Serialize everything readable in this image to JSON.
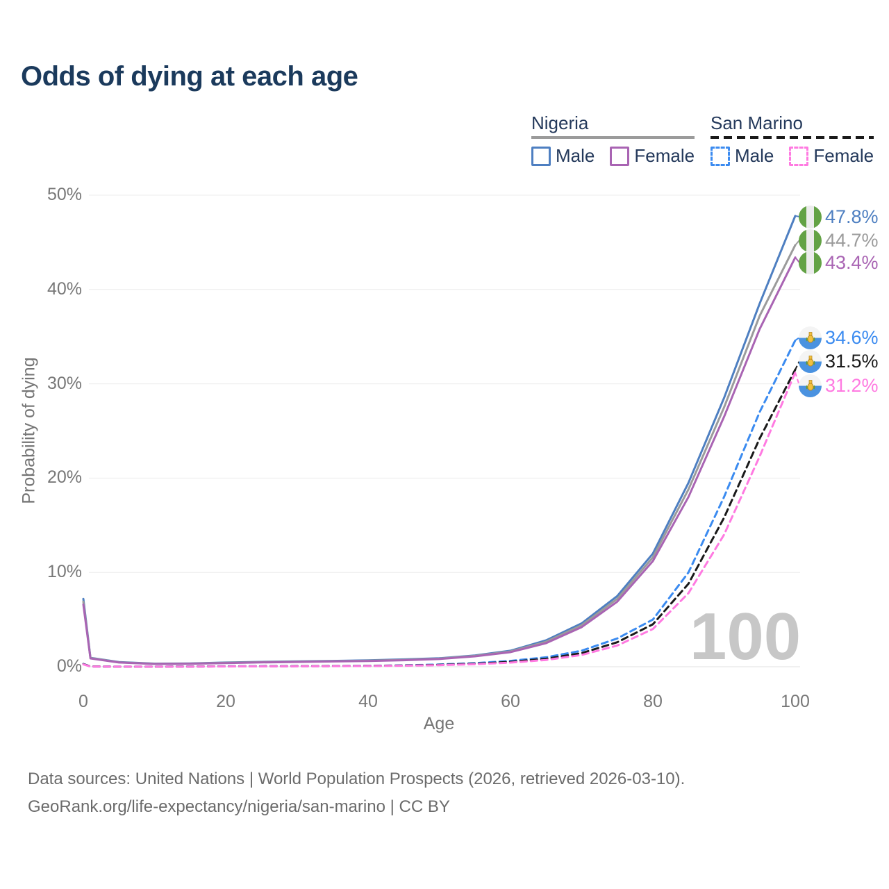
{
  "title": "Odds of dying at each age",
  "legend": {
    "groups": [
      {
        "name": "Nigeria",
        "items": [
          {
            "label": "Male"
          },
          {
            "label": "Female"
          }
        ]
      },
      {
        "name": "San Marino",
        "items": [
          {
            "label": "Male"
          },
          {
            "label": "Female"
          }
        ]
      }
    ]
  },
  "chart_data": {
    "type": "line",
    "title": "Odds of dying at each age",
    "xlabel": "Age",
    "ylabel": "Probability of dying",
    "xlim": [
      0,
      100
    ],
    "ylim": [
      0,
      50
    ],
    "grid": "horizontal-only",
    "legend_position": "top-right",
    "xticks": [
      "0",
      "20",
      "40",
      "60",
      "80",
      "100"
    ],
    "yticks": [
      "0%",
      "10%",
      "20%",
      "30%",
      "40%",
      "50%"
    ],
    "x": [
      0,
      1,
      5,
      10,
      15,
      20,
      25,
      30,
      35,
      40,
      45,
      50,
      55,
      60,
      65,
      70,
      75,
      80,
      85,
      90,
      95,
      100
    ],
    "series": [
      {
        "id": "nigeria-male",
        "name": "Nigeria Male",
        "country": "Nigeria",
        "sex": "male",
        "color": "#4e7fc1",
        "dash": "solid",
        "end_label": "47.8%",
        "values": [
          7.2,
          0.95,
          0.5,
          0.33,
          0.35,
          0.45,
          0.52,
          0.57,
          0.62,
          0.68,
          0.78,
          0.9,
          1.2,
          1.7,
          2.8,
          4.6,
          7.5,
          12.0,
          19.5,
          28.5,
          38.5,
          47.8
        ]
      },
      {
        "id": "nigeria-total",
        "name": "Nigeria Total",
        "country": "Nigeria",
        "sex": "total",
        "color": "#9b9b9b",
        "dash": "solid",
        "end_label": "44.7%",
        "values": [
          6.9,
          0.92,
          0.47,
          0.31,
          0.33,
          0.42,
          0.49,
          0.54,
          0.59,
          0.64,
          0.73,
          0.86,
          1.15,
          1.62,
          2.65,
          4.4,
          7.2,
          11.6,
          18.8,
          27.5,
          37.2,
          44.7
        ]
      },
      {
        "id": "nigeria-female",
        "name": "Nigeria Female",
        "country": "Nigeria",
        "sex": "female",
        "color": "#a964b3",
        "dash": "solid",
        "end_label": "43.4%",
        "values": [
          6.6,
          0.88,
          0.45,
          0.29,
          0.31,
          0.39,
          0.46,
          0.51,
          0.56,
          0.61,
          0.69,
          0.82,
          1.1,
          1.55,
          2.5,
          4.2,
          6.9,
          11.2,
          18.0,
          26.5,
          35.8,
          43.4
        ]
      },
      {
        "id": "san-marino-male",
        "name": "San Marino Male",
        "country": "San Marino",
        "sex": "male",
        "color": "#3b8bf0",
        "dash": "dashed",
        "end_label": "34.6%",
        "values": [
          0.3,
          0.03,
          0.01,
          0.01,
          0.02,
          0.05,
          0.06,
          0.07,
          0.08,
          0.1,
          0.15,
          0.24,
          0.38,
          0.62,
          1.0,
          1.7,
          3.0,
          5.0,
          10.0,
          18.0,
          27.0,
          34.6
        ]
      },
      {
        "id": "san-marino-total",
        "name": "San Marino Total",
        "country": "San Marino",
        "sex": "total",
        "color": "#1a1a1a",
        "dash": "dashed",
        "end_label": "31.5%",
        "values": [
          0.28,
          0.03,
          0.01,
          0.01,
          0.02,
          0.04,
          0.05,
          0.06,
          0.07,
          0.09,
          0.13,
          0.2,
          0.32,
          0.52,
          0.85,
          1.45,
          2.6,
          4.5,
          8.8,
          15.8,
          24.2,
          31.5
        ]
      },
      {
        "id": "san-marino-female",
        "name": "San Marino Female",
        "country": "San Marino",
        "sex": "female",
        "color": "#ff7ae1",
        "dash": "dashed",
        "end_label": "31.2%",
        "values": [
          0.25,
          0.02,
          0.01,
          0.01,
          0.01,
          0.03,
          0.04,
          0.05,
          0.06,
          0.08,
          0.11,
          0.17,
          0.27,
          0.44,
          0.72,
          1.25,
          2.25,
          4.0,
          7.8,
          14.0,
          22.3,
          31.2
        ]
      }
    ]
  },
  "age_marker": "100",
  "footer": {
    "sources": "Data sources: United Nations | World Population Prospects (2026, retrieved 2026-03-10).",
    "link": "GeoRank.org/life-expectancy/nigeria/san-marino | CC BY"
  }
}
